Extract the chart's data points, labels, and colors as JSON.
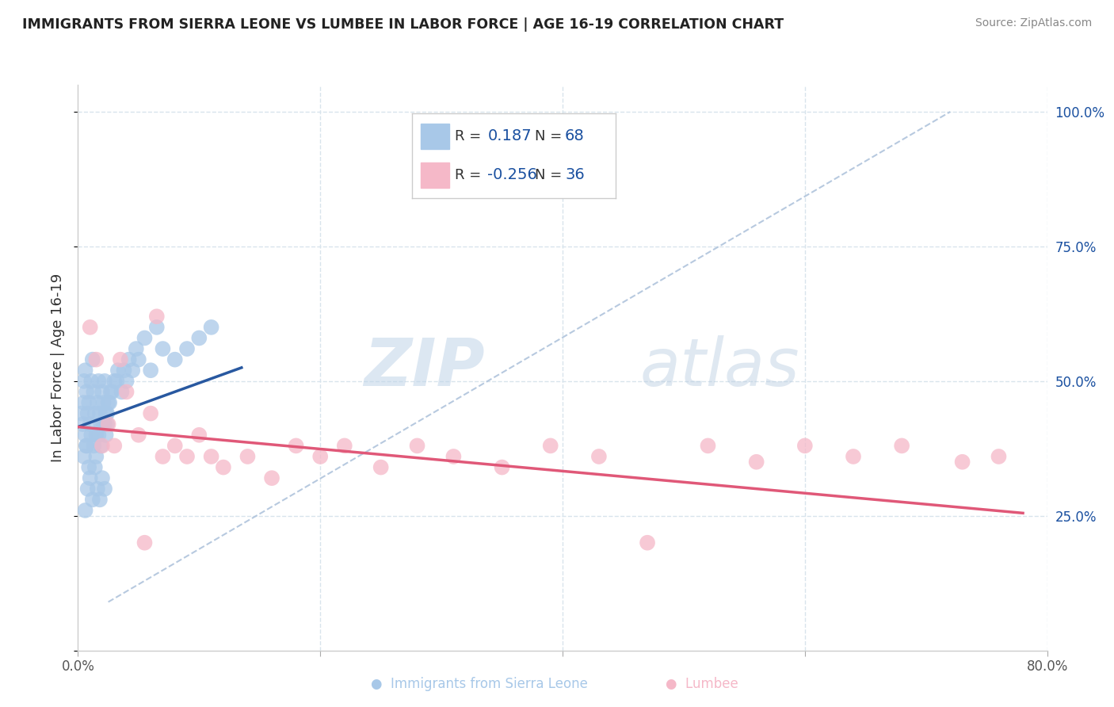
{
  "title": "IMMIGRANTS FROM SIERRA LEONE VS LUMBEE IN LABOR FORCE | AGE 16-19 CORRELATION CHART",
  "source": "Source: ZipAtlas.com",
  "ylabel": "In Labor Force | Age 16-19",
  "r_blue": 0.187,
  "n_blue": 68,
  "r_pink": -0.256,
  "n_pink": 36,
  "blue_color": "#a8c8e8",
  "pink_color": "#f5b8c8",
  "blue_line_color": "#2858a0",
  "pink_line_color": "#e05878",
  "ref_line_color": "#b0c4dc",
  "grid_color": "#d8e4ec",
  "legend_text_color": "#1a50a0",
  "blue_scatter_x": [
    0.005,
    0.006,
    0.007,
    0.008,
    0.009,
    0.01,
    0.011,
    0.012,
    0.013,
    0.014,
    0.015,
    0.016,
    0.017,
    0.018,
    0.019,
    0.02,
    0.021,
    0.022,
    0.023,
    0.024,
    0.005,
    0.007,
    0.009,
    0.011,
    0.013,
    0.015,
    0.017,
    0.019,
    0.021,
    0.023,
    0.025,
    0.027,
    0.03,
    0.033,
    0.036,
    0.04,
    0.045,
    0.05,
    0.06,
    0.07,
    0.08,
    0.09,
    0.1,
    0.11,
    0.008,
    0.01,
    0.012,
    0.006,
    0.014,
    0.016,
    0.018,
    0.02,
    0.022,
    0.003,
    0.004,
    0.005,
    0.006,
    0.007,
    0.022,
    0.024,
    0.026,
    0.028,
    0.032,
    0.038,
    0.042,
    0.048,
    0.055,
    0.065
  ],
  "blue_scatter_y": [
    0.5,
    0.52,
    0.48,
    0.44,
    0.46,
    0.42,
    0.5,
    0.54,
    0.48,
    0.44,
    0.4,
    0.46,
    0.5,
    0.44,
    0.42,
    0.48,
    0.46,
    0.5,
    0.44,
    0.42,
    0.36,
    0.38,
    0.34,
    0.4,
    0.38,
    0.36,
    0.4,
    0.38,
    0.42,
    0.4,
    0.46,
    0.48,
    0.5,
    0.52,
    0.48,
    0.5,
    0.52,
    0.54,
    0.52,
    0.56,
    0.54,
    0.56,
    0.58,
    0.6,
    0.3,
    0.32,
    0.28,
    0.26,
    0.34,
    0.3,
    0.28,
    0.32,
    0.3,
    0.44,
    0.42,
    0.46,
    0.4,
    0.38,
    0.42,
    0.44,
    0.46,
    0.48,
    0.5,
    0.52,
    0.54,
    0.56,
    0.58,
    0.6
  ],
  "pink_scatter_x": [
    0.01,
    0.015,
    0.02,
    0.025,
    0.03,
    0.035,
    0.04,
    0.05,
    0.06,
    0.07,
    0.08,
    0.09,
    0.1,
    0.11,
    0.12,
    0.14,
    0.16,
    0.18,
    0.2,
    0.22,
    0.25,
    0.28,
    0.31,
    0.35,
    0.39,
    0.43,
    0.47,
    0.52,
    0.56,
    0.6,
    0.64,
    0.68,
    0.73,
    0.76,
    0.065,
    0.055
  ],
  "pink_scatter_y": [
    0.6,
    0.54,
    0.38,
    0.42,
    0.38,
    0.54,
    0.48,
    0.4,
    0.44,
    0.36,
    0.38,
    0.36,
    0.4,
    0.36,
    0.34,
    0.36,
    0.32,
    0.38,
    0.36,
    0.38,
    0.34,
    0.38,
    0.36,
    0.34,
    0.38,
    0.36,
    0.2,
    0.38,
    0.35,
    0.38,
    0.36,
    0.38,
    0.35,
    0.36,
    0.62,
    0.2
  ],
  "xmin": 0.0,
  "xmax": 0.8,
  "ymin": 0.0,
  "ymax": 1.05,
  "xtick_positions": [
    0.0,
    0.2,
    0.4,
    0.6,
    0.8
  ],
  "xtick_labels": [
    "0.0%",
    "",
    "",
    "",
    "80.0%"
  ],
  "ytick_positions": [
    0.0,
    0.25,
    0.5,
    0.75,
    1.0
  ],
  "right_ytick_labels": [
    "",
    "25.0%",
    "50.0%",
    "75.0%",
    "100.0%"
  ]
}
